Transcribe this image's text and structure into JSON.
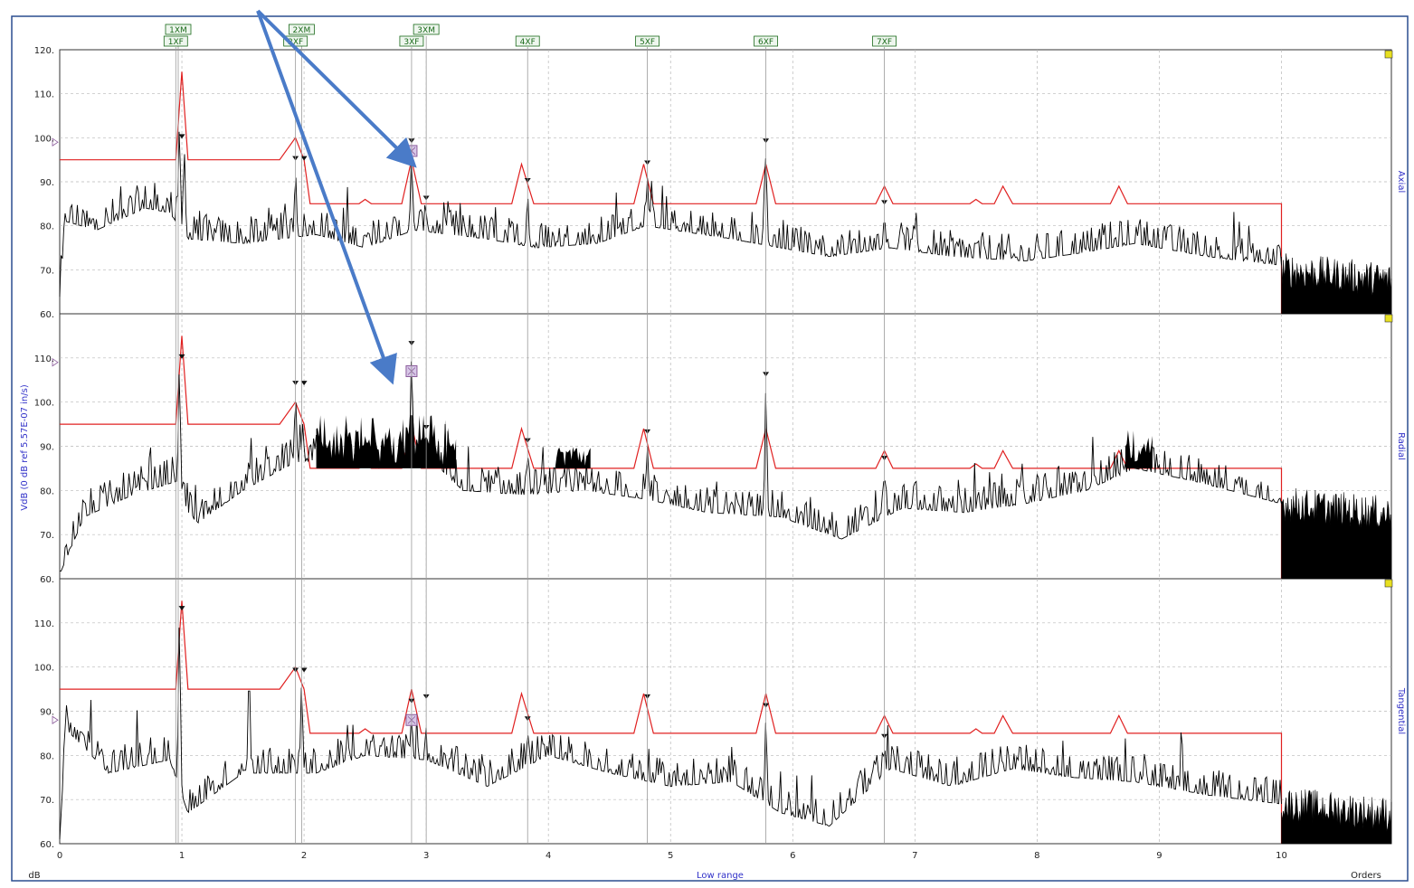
{
  "chart_data": {
    "type": "line",
    "ylabel": "VdB (0 dB ref 5.57E-07 in/s)",
    "xlabel": "Low range",
    "x_units": "Orders",
    "y_unit_label": "dB",
    "xlim": [
      0,
      10.9
    ],
    "ylim": [
      60,
      120
    ],
    "x_ticks": [
      "0",
      "1",
      "2",
      "3",
      "4",
      "5",
      "6",
      "7",
      "8",
      "9",
      "10"
    ],
    "y_ticks": [
      "120.",
      "110.",
      "100.",
      "90.",
      "80.",
      "70.",
      "60."
    ],
    "grid": true,
    "order_labels_top": [
      "1XM",
      "2XM",
      "3XM"
    ],
    "order_labels_bottom": [
      "1XF",
      "2XF",
      "3XF",
      "4XF",
      "5XF",
      "6XF",
      "7XF"
    ],
    "order_label_x": {
      "1XM": 0.97,
      "2XM": 1.98,
      "3XM": 3.0,
      "1XF": 0.95,
      "2XF": 1.93,
      "3XF": 2.88,
      "4XF": 3.83,
      "5XF": 4.81,
      "6XF": 5.78,
      "7XF": 6.75
    },
    "marker_x": [
      1.0,
      1.93,
      2.0,
      2.88,
      3.0,
      3.83,
      4.81,
      5.78,
      6.75
    ],
    "alarm_envelope": {
      "x": [
        0,
        0.02,
        0.95,
        1.0,
        1.05,
        1.1,
        1.8,
        1.93,
        2.0,
        2.05,
        2.1,
        2.45,
        2.5,
        2.55,
        2.8,
        2.88,
        2.96,
        3.7,
        3.78,
        3.88,
        4.7,
        4.78,
        4.86,
        5.7,
        5.78,
        5.86,
        6.68,
        6.75,
        6.82,
        7.45,
        7.5,
        7.55,
        7.65,
        7.72,
        7.8,
        8.6,
        8.67,
        8.74,
        10.0,
        10.0
      ],
      "y": [
        95,
        95,
        95,
        115,
        95,
        95,
        95,
        100,
        95,
        85,
        85,
        85,
        86,
        85,
        85,
        95,
        85,
        85,
        94,
        85,
        85,
        94,
        85,
        85,
        94,
        85,
        85,
        89,
        85,
        85,
        86,
        85,
        85,
        89,
        85,
        85,
        89,
        85,
        85,
        60
      ]
    },
    "series": [
      {
        "name": "Axial",
        "peaks": [
          {
            "x": 0.98,
            "y": 102
          },
          {
            "x": 1.02,
            "y": 97
          },
          {
            "x": 1.93,
            "y": 92
          },
          {
            "x": 2.88,
            "y": 96
          },
          {
            "x": 3.0,
            "y": 83
          },
          {
            "x": 3.83,
            "y": 87
          },
          {
            "x": 4.81,
            "y": 91
          },
          {
            "x": 5.78,
            "y": 96
          },
          {
            "x": 6.75,
            "y": 82
          }
        ],
        "baseline": [
          [
            0.0,
            62
          ],
          [
            0.05,
            81
          ],
          [
            0.3,
            79
          ],
          [
            0.7,
            84
          ],
          [
            0.9,
            83
          ],
          [
            1.05,
            77
          ],
          [
            1.5,
            76
          ],
          [
            2.1,
            78
          ],
          [
            2.5,
            75
          ],
          [
            2.9,
            79
          ],
          [
            3.5,
            77
          ],
          [
            3.9,
            75
          ],
          [
            4.4,
            76
          ],
          [
            4.8,
            80
          ],
          [
            5.5,
            77
          ],
          [
            5.9,
            75
          ],
          [
            6.3,
            73
          ],
          [
            6.8,
            75
          ],
          [
            7.3,
            73
          ],
          [
            7.9,
            72
          ],
          [
            8.4,
            74
          ],
          [
            8.8,
            76
          ],
          [
            9.4,
            73
          ],
          [
            10.0,
            71
          ]
        ],
        "alarm_fill_ranges": []
      },
      {
        "name": "Radial",
        "peaks": [
          {
            "x": 0.98,
            "y": 107
          },
          {
            "x": 1.93,
            "y": 101
          },
          {
            "x": 2.88,
            "y": 110
          },
          {
            "x": 3.0,
            "y": 91
          },
          {
            "x": 3.83,
            "y": 88
          },
          {
            "x": 4.81,
            "y": 90
          },
          {
            "x": 5.78,
            "y": 103
          },
          {
            "x": 6.75,
            "y": 84
          }
        ],
        "baseline": [
          [
            0.0,
            61
          ],
          [
            0.2,
            74
          ],
          [
            0.6,
            79
          ],
          [
            0.95,
            82
          ],
          [
            1.1,
            72
          ],
          [
            1.5,
            80
          ],
          [
            1.9,
            86
          ],
          [
            2.1,
            87
          ],
          [
            2.6,
            85
          ],
          [
            3.0,
            88
          ],
          [
            3.3,
            80
          ],
          [
            3.8,
            79
          ],
          [
            4.3,
            80
          ],
          [
            4.8,
            78
          ],
          [
            5.3,
            75
          ],
          [
            5.9,
            74
          ],
          [
            6.4,
            69
          ],
          [
            6.9,
            76
          ],
          [
            7.4,
            75
          ],
          [
            7.9,
            77
          ],
          [
            8.4,
            80
          ],
          [
            8.8,
            85
          ],
          [
            9.3,
            82
          ],
          [
            10.0,
            77
          ]
        ],
        "alarm_fill_ranges": [
          [
            2.1,
            3.25
          ],
          [
            4.05,
            4.35
          ],
          [
            8.72,
            8.95
          ]
        ]
      },
      {
        "name": "Tangential",
        "peaks": [
          {
            "x": 0.98,
            "y": 110
          },
          {
            "x": 1.55,
            "y": 99
          },
          {
            "x": 1.98,
            "y": 96
          },
          {
            "x": 2.88,
            "y": 89
          },
          {
            "x": 3.83,
            "y": 85
          },
          {
            "x": 5.78,
            "y": 88
          },
          {
            "x": 6.75,
            "y": 81
          },
          {
            "x": 7.7,
            "y": 82
          }
        ],
        "baseline": [
          [
            0.0,
            61
          ],
          [
            0.05,
            86
          ],
          [
            0.4,
            76
          ],
          [
            0.9,
            79
          ],
          [
            1.05,
            67
          ],
          [
            1.5,
            76
          ],
          [
            2.1,
            76
          ],
          [
            2.5,
            80
          ],
          [
            3.0,
            79
          ],
          [
            3.5,
            73
          ],
          [
            4.0,
            80
          ],
          [
            4.5,
            76
          ],
          [
            5.0,
            73
          ],
          [
            5.5,
            74
          ],
          [
            5.9,
            67
          ],
          [
            6.3,
            64
          ],
          [
            6.8,
            77
          ],
          [
            7.3,
            73
          ],
          [
            7.8,
            77
          ],
          [
            8.3,
            75
          ],
          [
            8.8,
            74
          ],
          [
            9.4,
            71
          ],
          [
            10.0,
            69
          ]
        ],
        "alarm_fill_ranges": []
      }
    ],
    "high_range_fill": {
      "x": [
        10.0,
        10.9
      ],
      "levels": [
        70,
        77,
        69
      ]
    },
    "colors": {
      "trace": "#000000",
      "alarm": "#e02020",
      "grid": "#b8b8b8",
      "order_line": "#9a9a9a",
      "order_label": "#1a6a1a",
      "axis_label": "#3030c8",
      "arrow": "#4a7bc8",
      "marker": "#8a5a9a"
    }
  }
}
